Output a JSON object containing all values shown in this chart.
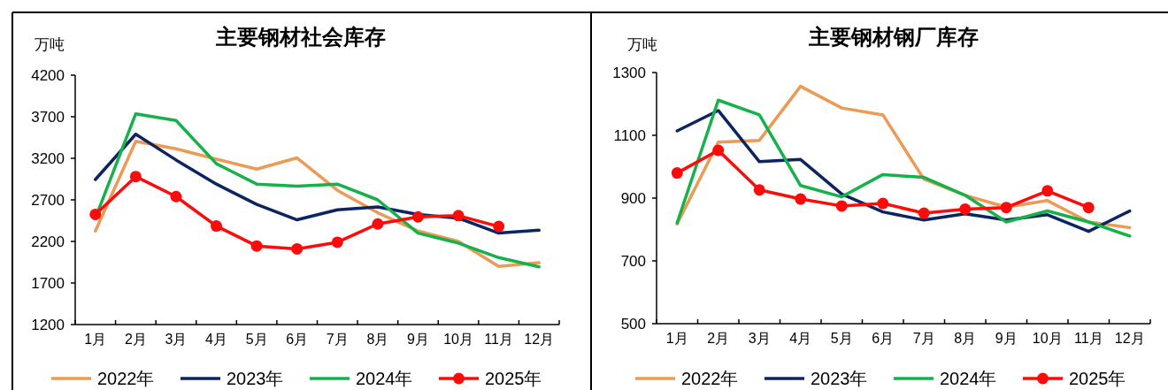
{
  "chart_data": [
    {
      "type": "line",
      "title": "主要钢材社会库存",
      "ylabel": "万吨",
      "categories": [
        "1月",
        "2月",
        "3月",
        "4月",
        "5月",
        "6月",
        "7月",
        "8月",
        "9月",
        "10月",
        "11月",
        "12月"
      ],
      "ylim": [
        1200,
        4200
      ],
      "yticks": [
        1200,
        1700,
        2200,
        2700,
        3200,
        3700,
        4200
      ],
      "grid": false,
      "legend": "bottom",
      "series": [
        {
          "name": "2022年",
          "color": "#ed9a55",
          "marker": "none",
          "values": [
            2325,
            3405,
            3315,
            3190,
            3070,
            3205,
            2815,
            2545,
            2325,
            2200,
            1900,
            1945
          ]
        },
        {
          "name": "2023年",
          "color": "#0c2461",
          "marker": "none",
          "values": [
            2945,
            3490,
            3180,
            2890,
            2645,
            2460,
            2580,
            2615,
            2525,
            2480,
            2300,
            2335
          ]
        },
        {
          "name": "2024年",
          "color": "#17b14c",
          "marker": "none",
          "values": [
            2480,
            3735,
            3655,
            3135,
            2890,
            2865,
            2890,
            2700,
            2300,
            2180,
            2005,
            1895
          ]
        },
        {
          "name": "2025年",
          "color": "#ff0a0a",
          "marker": "circle",
          "values": [
            2525,
            2980,
            2740,
            2385,
            2145,
            2110,
            2190,
            2410,
            2495,
            2510,
            2380,
            null
          ]
        }
      ]
    },
    {
      "type": "line",
      "title": "主要钢材钢厂库存",
      "ylabel": "万吨",
      "categories": [
        "1月",
        "2月",
        "3月",
        "4月",
        "5月",
        "6月",
        "7月",
        "8月",
        "9月",
        "10月",
        "11月",
        "12月"
      ],
      "ylim": [
        500,
        1300
      ],
      "yticks": [
        500,
        700,
        900,
        1100,
        1300
      ],
      "grid": false,
      "legend": "bottom",
      "series": [
        {
          "name": "2022年",
          "color": "#ed9a55",
          "marker": "none",
          "values": [
            818,
            1078,
            1084,
            1256,
            1187,
            1165,
            960,
            909,
            871,
            892,
            824,
            806
          ]
        },
        {
          "name": "2023年",
          "color": "#0c2461",
          "marker": "none",
          "values": [
            1114,
            1179,
            1016,
            1023,
            913,
            856,
            830,
            850,
            830,
            847,
            794,
            859
          ]
        },
        {
          "name": "2024年",
          "color": "#17b14c",
          "marker": "none",
          "values": [
            821,
            1212,
            1165,
            940,
            904,
            975,
            966,
            909,
            824,
            859,
            824,
            779
          ]
        },
        {
          "name": "2025年",
          "color": "#ff0a0a",
          "marker": "circle",
          "values": [
            980,
            1052,
            926,
            897,
            875,
            883,
            852,
            865,
            870,
            923,
            870,
            null
          ]
        }
      ]
    }
  ]
}
